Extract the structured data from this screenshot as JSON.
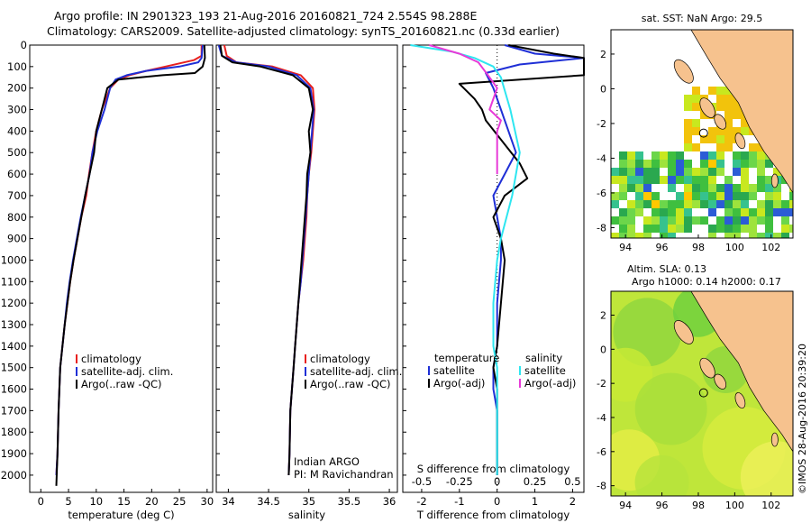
{
  "header": {
    "line1": "Argo profile: IN 2901323_193 21-Aug-2016 20160821_724 2.554S 98.288E",
    "line2": "Climatology: CARS2009. Satellite-adjusted climatology: synTS_20160821.nc (0.33d earlier)"
  },
  "stamp": "©IMOS 28-Aug-2016 20:39:20",
  "colors": {
    "climatology": "#e8201e",
    "satellite": "#1f2fd6",
    "argo": "#000000",
    "salinity_satellite": "#2ee6f0",
    "salinity_argo": "#e83ad8",
    "land": "#f6c28e"
  },
  "chart_data": [
    {
      "type": "line",
      "xlabel": "temperature (deg C)",
      "ylabel": "",
      "xlim": [
        -2,
        31
      ],
      "ylim": [
        2080,
        0
      ],
      "xticks": [
        "0",
        "5",
        "10",
        "15",
        "20",
        "25",
        "30"
      ],
      "yticks": [
        "0",
        "100",
        "200",
        "300",
        "400",
        "500",
        "600",
        "700",
        "800",
        "900",
        "1000",
        "1100",
        "1200",
        "1300",
        "1400",
        "1500",
        "1600",
        "1700",
        "1800",
        "1900",
        "2000"
      ],
      "legend": {
        "position": "lower-center",
        "entries": [
          "climatology",
          "satellite-adj. clim.",
          "Argo(..raw -QC)"
        ]
      },
      "series": [
        {
          "name": "climatology",
          "color": "#e8201e",
          "x": [
            29.0,
            29.0,
            27.6,
            22.5,
            19.0,
            16.0,
            14.0,
            12.5,
            11.0,
            10.0,
            9.3,
            8.7,
            8.2,
            7.3,
            6.6,
            5.9,
            5.3,
            4.8,
            4.3,
            3.9,
            3.5,
            3.2,
            3.0,
            2.8
          ],
          "y": [
            0,
            50,
            70,
            100,
            120,
            140,
            160,
            200,
            300,
            400,
            500,
            600,
            700,
            800,
            900,
            1000,
            1100,
            1200,
            1300,
            1400,
            1500,
            1700,
            1900,
            2000
          ]
        },
        {
          "name": "satellite-adj. clim.",
          "color": "#1f2fd6",
          "x": [
            29.2,
            29.0,
            28.4,
            25.0,
            19.0,
            15.5,
            13.5,
            12.5,
            11.5,
            10.2,
            9.3,
            8.8,
            8.0,
            7.2,
            6.5,
            5.8,
            5.2,
            4.7,
            4.3,
            3.9,
            3.5,
            3.2,
            3.0,
            2.8
          ],
          "y": [
            0,
            60,
            80,
            100,
            120,
            140,
            160,
            200,
            300,
            400,
            500,
            600,
            700,
            800,
            900,
            1000,
            1100,
            1200,
            1300,
            1400,
            1500,
            1700,
            1900,
            2000
          ]
        },
        {
          "name": "Argo(..raw -QC)",
          "color": "#000000",
          "x": [
            29.5,
            29.6,
            29.2,
            27.8,
            22.0,
            18.0,
            14.0,
            12.0,
            11.0,
            10.0,
            9.6,
            8.8,
            8.0,
            7.3,
            6.6,
            5.9,
            5.3,
            4.8,
            4.3,
            3.9,
            3.5,
            3.2,
            3.0,
            2.8
          ],
          "y": [
            0,
            60,
            100,
            130,
            140,
            150,
            160,
            200,
            300,
            400,
            500,
            600,
            700,
            800,
            900,
            1000,
            1100,
            1200,
            1300,
            1400,
            1500,
            1700,
            1900,
            2050
          ]
        }
      ]
    },
    {
      "type": "line",
      "xlabel": "salinity",
      "xlim": [
        33.85,
        36.1
      ],
      "ylim": [
        2080,
        0
      ],
      "xticks": [
        "34",
        "34.5",
        "35",
        "35.5",
        "36"
      ],
      "legend": {
        "position": "lower-right",
        "entries": [
          "climatology",
          "satellite-adj. clim.",
          "Argo(..raw -QC)"
        ]
      },
      "annotation": [
        "Indian ARGO",
        "PI: M Ravichandran"
      ],
      "series": [
        {
          "name": "climatology",
          "color": "#e8201e",
          "x": [
            33.95,
            33.98,
            34.1,
            34.55,
            34.9,
            35.05,
            35.07,
            35.05,
            35.03,
            35.0,
            34.98,
            34.97,
            34.95,
            34.93,
            34.9,
            34.87,
            34.85,
            34.83,
            34.81,
            34.79,
            34.77,
            34.76,
            34.75
          ],
          "y": [
            0,
            50,
            80,
            100,
            140,
            200,
            300,
            400,
            500,
            600,
            700,
            800,
            900,
            1000,
            1100,
            1200,
            1300,
            1400,
            1500,
            1600,
            1700,
            1900,
            2000
          ]
        },
        {
          "name": "satellite-adj. clim.",
          "color": "#1f2fd6",
          "x": [
            33.88,
            33.92,
            34.1,
            34.5,
            34.85,
            35.02,
            35.06,
            35.04,
            35.02,
            35.0,
            34.98,
            34.96,
            34.94,
            34.92,
            34.9,
            34.87,
            34.85,
            34.83,
            34.81,
            34.79,
            34.77,
            34.76,
            34.75
          ],
          "y": [
            0,
            50,
            80,
            100,
            140,
            200,
            300,
            400,
            500,
            600,
            700,
            800,
            900,
            1000,
            1100,
            1200,
            1300,
            1400,
            1500,
            1600,
            1700,
            1900,
            2000
          ]
        },
        {
          "name": "Argo(..raw -QC)",
          "color": "#000000",
          "x": [
            33.9,
            33.92,
            34.05,
            34.4,
            34.8,
            35.0,
            35.05,
            35.0,
            35.02,
            34.98,
            34.97,
            34.95,
            34.93,
            34.91,
            34.89,
            34.87,
            34.85,
            34.83,
            34.81,
            34.79,
            34.77,
            34.76,
            34.75
          ],
          "y": [
            0,
            50,
            80,
            100,
            140,
            200,
            300,
            400,
            500,
            600,
            700,
            800,
            900,
            1000,
            1100,
            1200,
            1300,
            1400,
            1500,
            1600,
            1700,
            1900,
            2000
          ]
        }
      ]
    },
    {
      "type": "line",
      "xlabel": "T difference from climatology",
      "xlabel2": "S difference from climatology",
      "xlim": [
        -2.5,
        2.3
      ],
      "ylim": [
        2080,
        0
      ],
      "xticks": [
        "-2",
        "-1",
        "0",
        "1",
        "2"
      ],
      "xticks2": [
        "-0.5",
        "-0.25",
        "0",
        "0.25",
        "0.5"
      ],
      "legend": {
        "position": "lower",
        "groups": [
          "temperature",
          "salinity"
        ],
        "entries": [
          "satellite",
          "Argo(-adj)",
          "satellite",
          "Argo(-adj)"
        ]
      },
      "series": [
        {
          "name": "satellite",
          "group": "temperature",
          "color": "#1f2fd6",
          "x": [
            0.2,
            1.0,
            2.3,
            0.6,
            -0.3,
            -0.1,
            0.1,
            0.3,
            0.5,
            0.2,
            -0.1,
            0.0,
            0.1,
            0.1,
            0.0,
            0.0,
            -0.1,
            -0.1,
            0.0,
            0.0,
            0.0
          ],
          "y": [
            0,
            40,
            60,
            90,
            130,
            200,
            300,
            400,
            500,
            600,
            700,
            800,
            900,
            1000,
            1200,
            1400,
            1500,
            1600,
            1700,
            1900,
            2000
          ]
        },
        {
          "name": "Argo(-adj)",
          "group": "temperature",
          "color": "#000000",
          "x": [
            0.3,
            1.5,
            2.3,
            2.3,
            -1.0,
            -0.6,
            -0.4,
            -0.3,
            0.6,
            0.8,
            0.2,
            -0.1,
            0.1,
            0.2,
            0.1,
            0.0,
            -0.1,
            0.0,
            0.0,
            0.0,
            0.0
          ],
          "y": [
            0,
            40,
            60,
            140,
            180,
            250,
            300,
            350,
            550,
            620,
            700,
            800,
            900,
            1000,
            1200,
            1400,
            1500,
            1600,
            1700,
            1900,
            2000
          ]
        },
        {
          "name": "satellite",
          "group": "salinity",
          "color": "#2ee6f0",
          "x": [
            -2.3,
            -1.2,
            -0.6,
            -0.1,
            0.1,
            0.35,
            0.6,
            0.4,
            0.1,
            0.0,
            -0.1,
            -0.1,
            0.0,
            0.0,
            0.0,
            0.0
          ],
          "y": [
            0,
            30,
            60,
            100,
            150,
            300,
            500,
            700,
            900,
            1000,
            1200,
            1400,
            1500,
            1700,
            1900,
            2000
          ]
        },
        {
          "name": "Argo(-adj)",
          "group": "salinity",
          "color": "#e83ad8",
          "x": [
            -1.8,
            -1.0,
            -0.5,
            -0.2,
            0.0,
            -0.2,
            0.1,
            0.0,
            0.0,
            0.0
          ],
          "y": [
            0,
            40,
            80,
            150,
            200,
            300,
            350,
            400,
            500,
            600
          ]
        }
      ]
    },
    {
      "type": "heatmap",
      "title": "sat. SST: NaN Argo: 29.5",
      "xlim": [
        93.2,
        103.2
      ],
      "ylim": [
        -8.6,
        3.4
      ],
      "xticks": [
        "94",
        "96",
        "98",
        "100",
        "102"
      ],
      "yticks": [
        "2",
        "0",
        "-2",
        "-4",
        "-6",
        "-8"
      ],
      "argo_position": [
        98.288,
        -2.554
      ]
    },
    {
      "type": "heatmap",
      "title": "Altim. SLA: 0.13",
      "subtitle": "Argo h1000: 0.14 h2000: 0.17",
      "xlim": [
        93.2,
        103.2
      ],
      "ylim": [
        -8.6,
        3.4
      ],
      "xticks": [
        "94",
        "96",
        "98",
        "100",
        "102"
      ],
      "yticks": [
        "2",
        "0",
        "-2",
        "-4",
        "-6",
        "-8"
      ],
      "argo_position": [
        98.288,
        -2.554
      ]
    }
  ]
}
